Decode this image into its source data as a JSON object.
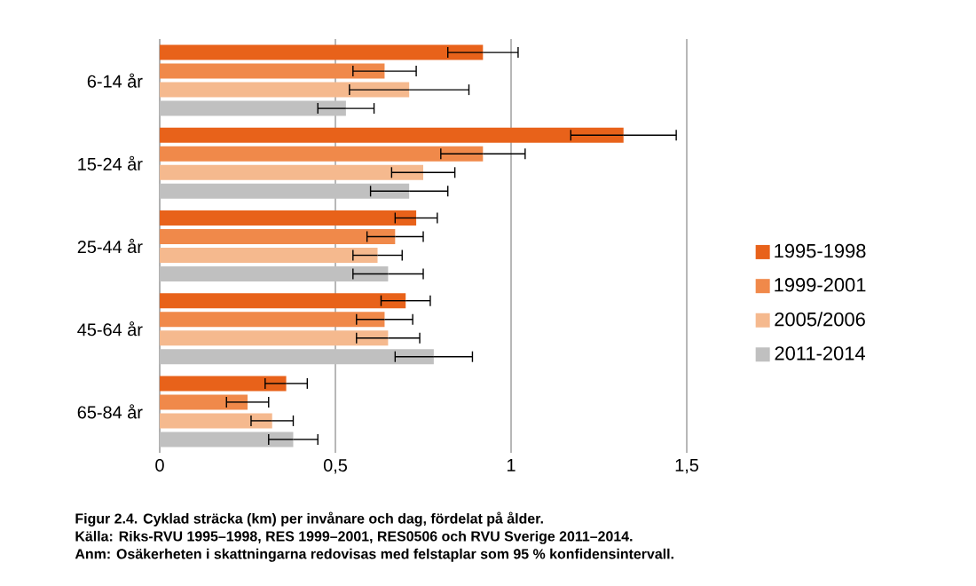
{
  "chart_data": {
    "type": "bar",
    "orientation": "horizontal",
    "title": "Figur 2.4. Cyklad sträcka (km) per invånare och dag, fördelat på ålder.",
    "annotations": [
      "Källa: Riks-RVU 1995–1998, RES 1999–2001, RES0506 och RVU Sverige 2011–2014.",
      "Anm: Osäkerheten i skattningarna redovisas med felstaplar som 95 % konfidensintervall."
    ],
    "categories": [
      "6-14 år",
      "15-24 år",
      "25-44 år",
      "45-64 år",
      "65-84 år"
    ],
    "series": [
      {
        "name": "1995-1998",
        "color": "#e8621a",
        "values": [
          0.92,
          1.32,
          0.73,
          0.7,
          0.36
        ],
        "errors": [
          [
            0.82,
            1.02
          ],
          [
            1.17,
            1.47
          ],
          [
            0.67,
            0.79
          ],
          [
            0.63,
            0.77
          ],
          [
            0.3,
            0.42
          ]
        ]
      },
      {
        "name": "1999-2001",
        "color": "#f0894a",
        "values": [
          0.64,
          0.92,
          0.67,
          0.64,
          0.25
        ],
        "errors": [
          [
            0.55,
            0.73
          ],
          [
            0.8,
            1.04
          ],
          [
            0.59,
            0.75
          ],
          [
            0.56,
            0.72
          ],
          [
            0.19,
            0.31
          ]
        ]
      },
      {
        "name": "2005/2006",
        "color": "#f5b98e",
        "values": [
          0.71,
          0.75,
          0.62,
          0.65,
          0.32
        ],
        "errors": [
          [
            0.54,
            0.88
          ],
          [
            0.66,
            0.84
          ],
          [
            0.55,
            0.69
          ],
          [
            0.56,
            0.74
          ],
          [
            0.26,
            0.38
          ]
        ]
      },
      {
        "name": "2011-2014",
        "color": "#c0c0c0",
        "values": [
          0.53,
          0.71,
          0.65,
          0.78,
          0.38
        ],
        "errors": [
          [
            0.45,
            0.61
          ],
          [
            0.6,
            0.82
          ],
          [
            0.55,
            0.75
          ],
          [
            0.67,
            0.89
          ],
          [
            0.31,
            0.45
          ]
        ]
      }
    ],
    "xlim": [
      0,
      1.5
    ],
    "xticks": [
      0,
      {
        "value": 0.5,
        "label": "0,5"
      },
      1,
      {
        "value": 1.5,
        "label": "1,5"
      }
    ],
    "grid": "x",
    "legend": "right"
  }
}
